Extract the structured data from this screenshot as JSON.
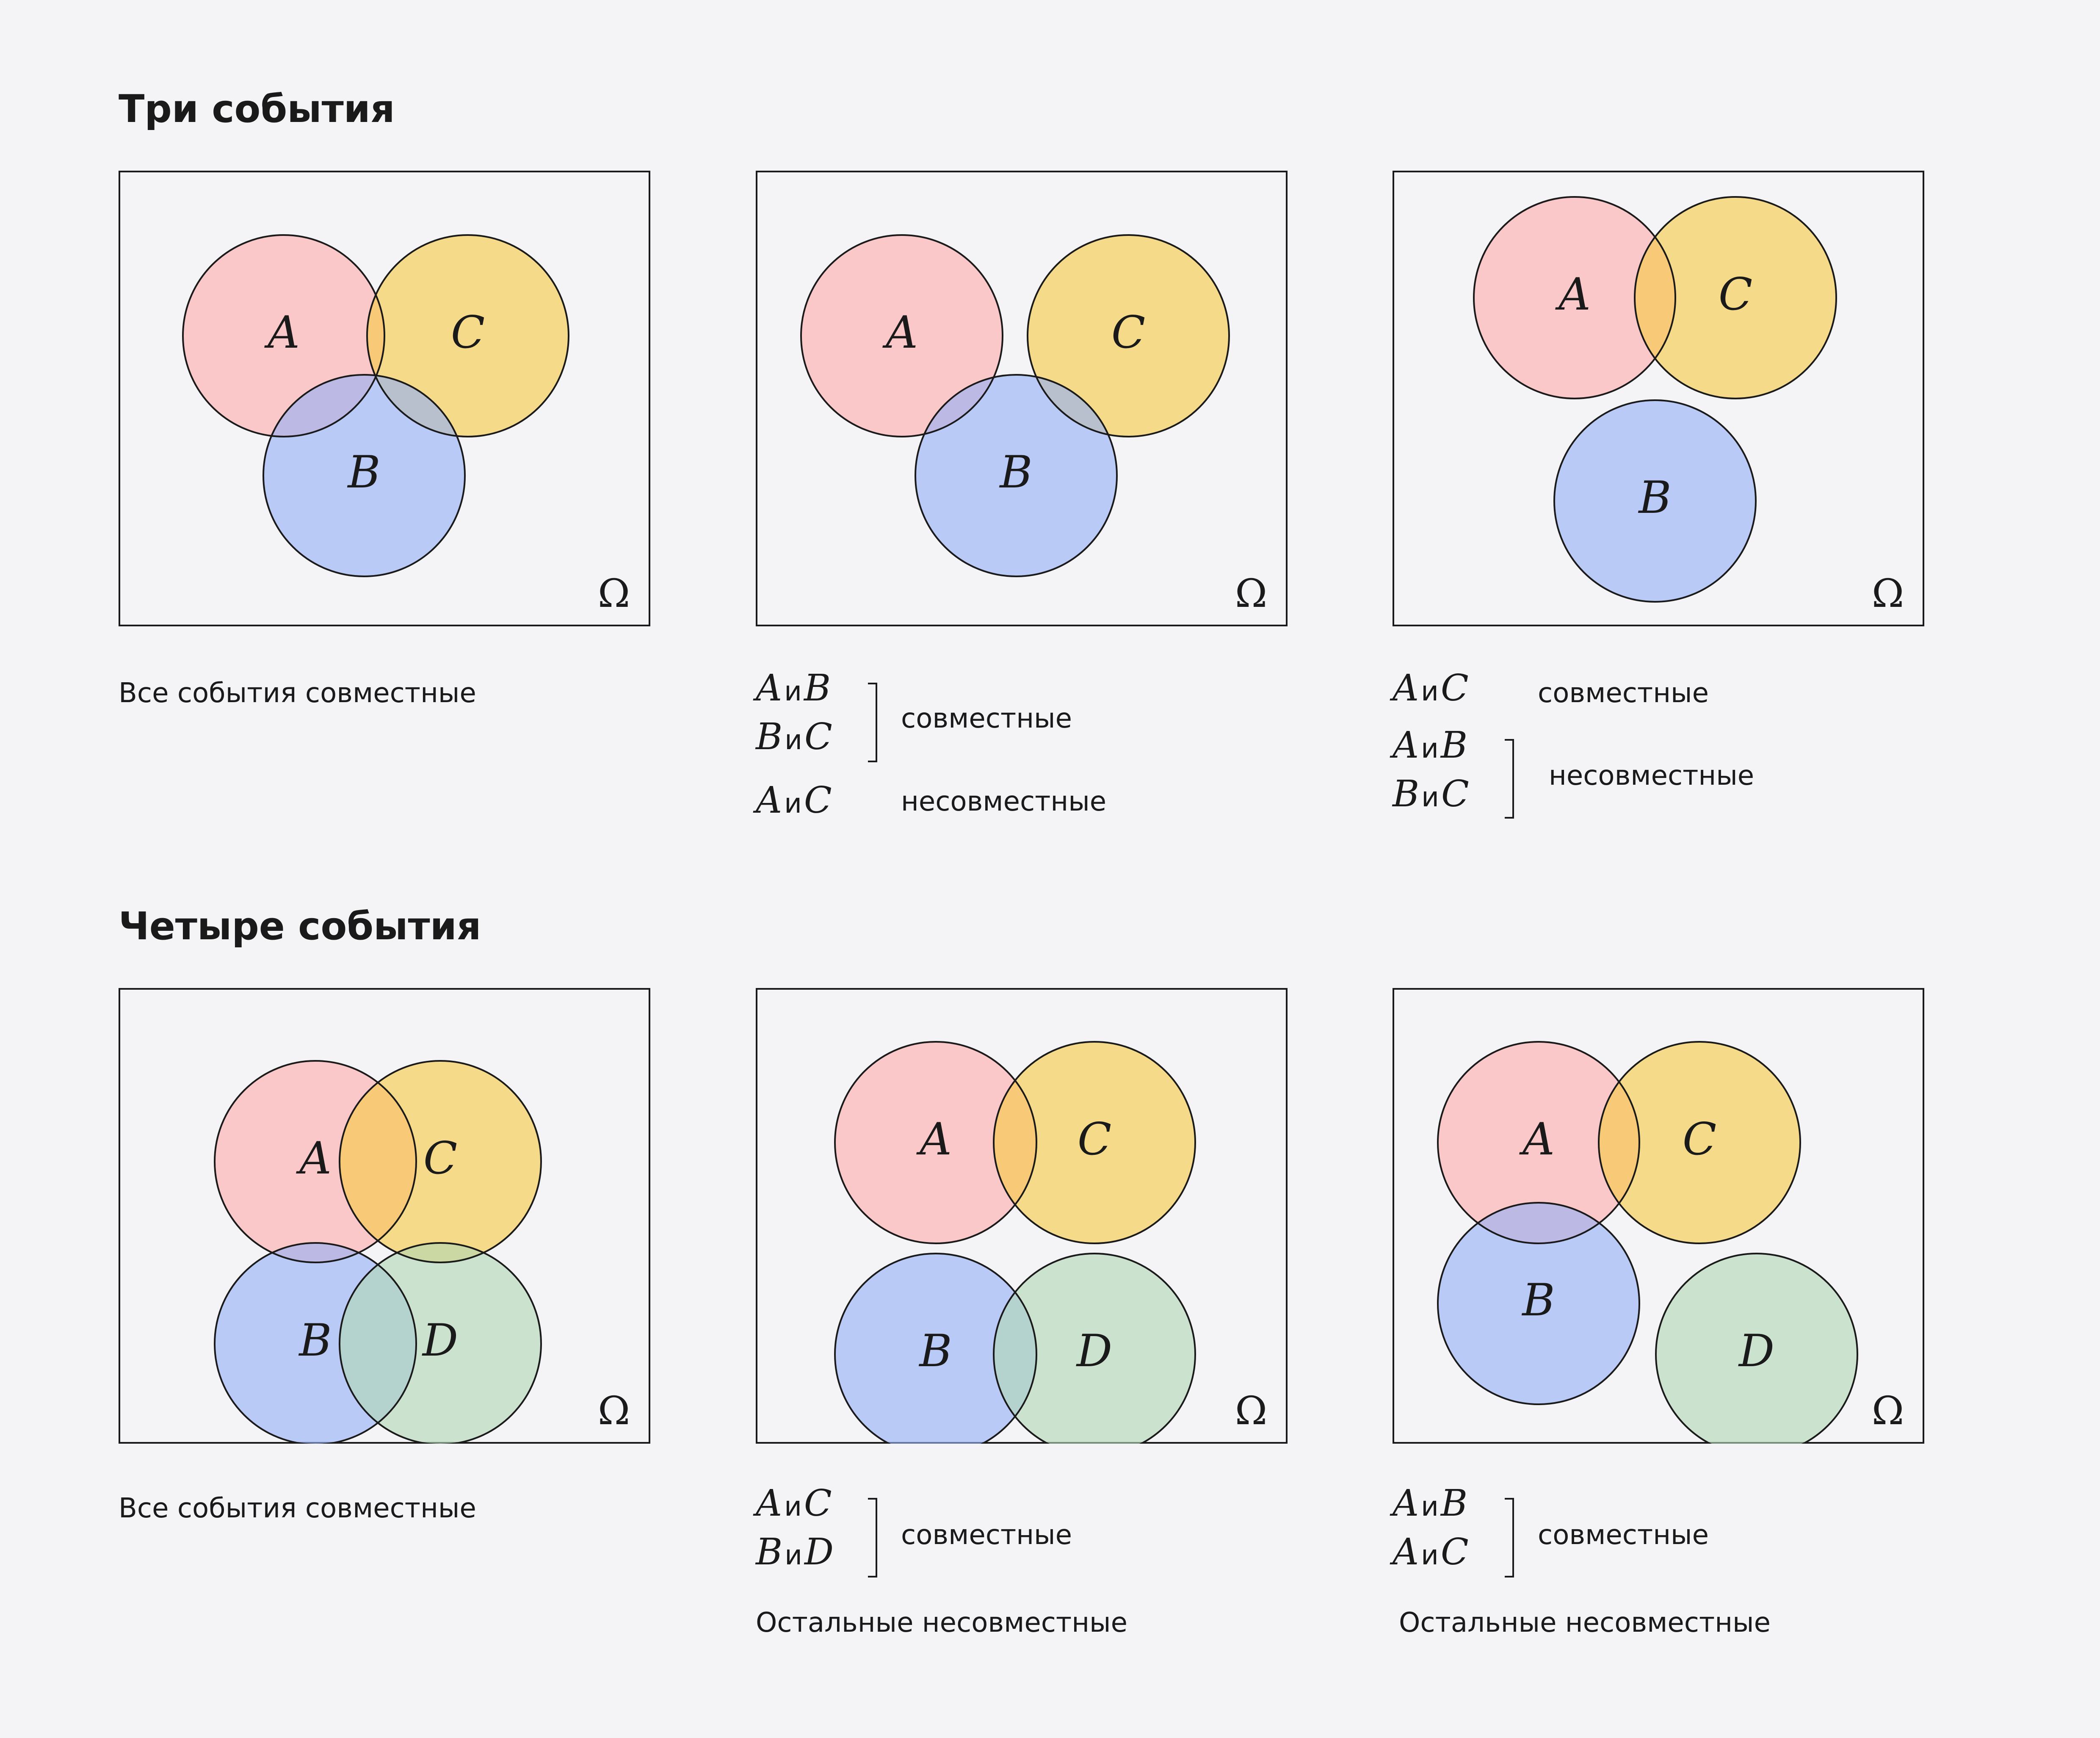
{
  "sections": [
    {
      "title": "Три события"
    },
    {
      "title": "Четыре события"
    }
  ],
  "conj": "и",
  "omega": "Ω",
  "colors": {
    "A": "#ffadad",
    "C": "#f5c945",
    "B": "#94b0f7",
    "D": "#b2d6b4",
    "frame": "#1a1a1a",
    "background": "#f4f4f7"
  },
  "diagrams": [
    {
      "circles": [
        {
          "label": "A",
          "color": "#ffadad"
        },
        {
          "label": "C",
          "color": "#f5c945"
        },
        {
          "label": "B",
          "color": "#94b0f7"
        }
      ]
    },
    {
      "circles": [
        {
          "label": "A",
          "color": "#ffadad"
        },
        {
          "label": "C",
          "color": "#f5c945"
        },
        {
          "label": "B",
          "color": "#94b0f7"
        }
      ]
    },
    {
      "circles": [
        {
          "label": "A",
          "color": "#ffadad"
        },
        {
          "label": "C",
          "color": "#f5c945"
        },
        {
          "label": "B",
          "color": "#94b0f7"
        }
      ]
    },
    {
      "circles": [
        {
          "label": "A",
          "color": "#ffadad"
        },
        {
          "label": "C",
          "color": "#f5c945"
        },
        {
          "label": "B",
          "color": "#94b0f7"
        },
        {
          "label": "D",
          "color": "#b2d6b4"
        }
      ]
    },
    {
      "circles": [
        {
          "label": "A",
          "color": "#ffadad"
        },
        {
          "label": "C",
          "color": "#f5c945"
        },
        {
          "label": "B",
          "color": "#94b0f7"
        },
        {
          "label": "D",
          "color": "#b2d6b4"
        }
      ]
    },
    {
      "circles": [
        {
          "label": "A",
          "color": "#ffadad"
        },
        {
          "label": "C",
          "color": "#f5c945"
        },
        {
          "label": "B",
          "color": "#94b0f7"
        },
        {
          "label": "D",
          "color": "#b2d6b4"
        }
      ]
    }
  ],
  "captions": {
    "d1": {
      "text": "Все события совместные"
    },
    "d2": {
      "pairs": [
        [
          "A",
          "B"
        ],
        [
          "B",
          "C"
        ],
        [
          "A",
          "C"
        ]
      ],
      "joint": "совместные",
      "disjoint": "несовместные"
    },
    "d3": {
      "pairs": [
        [
          "A",
          "C"
        ],
        [
          "A",
          "B"
        ],
        [
          "B",
          "C"
        ]
      ],
      "joint": "совместные",
      "disjoint": "несовместные"
    },
    "d4": {
      "text": "Все события совместные"
    },
    "d5": {
      "pairs": [
        [
          "A",
          "C"
        ],
        [
          "B",
          "D"
        ]
      ],
      "joint": "совместные",
      "rest": "Остальные несовместные"
    },
    "d6": {
      "pairs": [
        [
          "A",
          "B"
        ],
        [
          "A",
          "C"
        ]
      ],
      "joint": "совместные",
      "rest": "Остальные несовместные"
    }
  }
}
